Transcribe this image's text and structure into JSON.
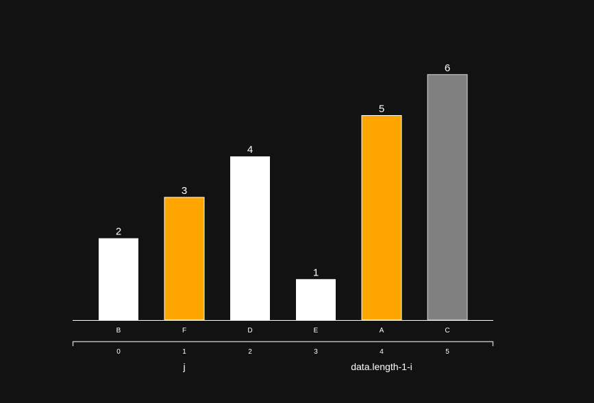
{
  "chart_data": {
    "type": "bar",
    "title": "",
    "categories": [
      "B",
      "F",
      "D",
      "E",
      "A",
      "C"
    ],
    "values": [
      2,
      3,
      4,
      1,
      5,
      6
    ],
    "indices": [
      "0",
      "1",
      "2",
      "3",
      "4",
      "5"
    ],
    "bar_colors": [
      "#ffffff",
      "#ffa500",
      "#ffffff",
      "#ffffff",
      "#ffa500",
      "#808080"
    ],
    "ylim": [
      0,
      6
    ],
    "xlabel": "",
    "ylabel": "",
    "pointers": [
      {
        "label": "j",
        "index": 1
      },
      {
        "label": "data.length-1-i",
        "index": 4
      }
    ]
  }
}
